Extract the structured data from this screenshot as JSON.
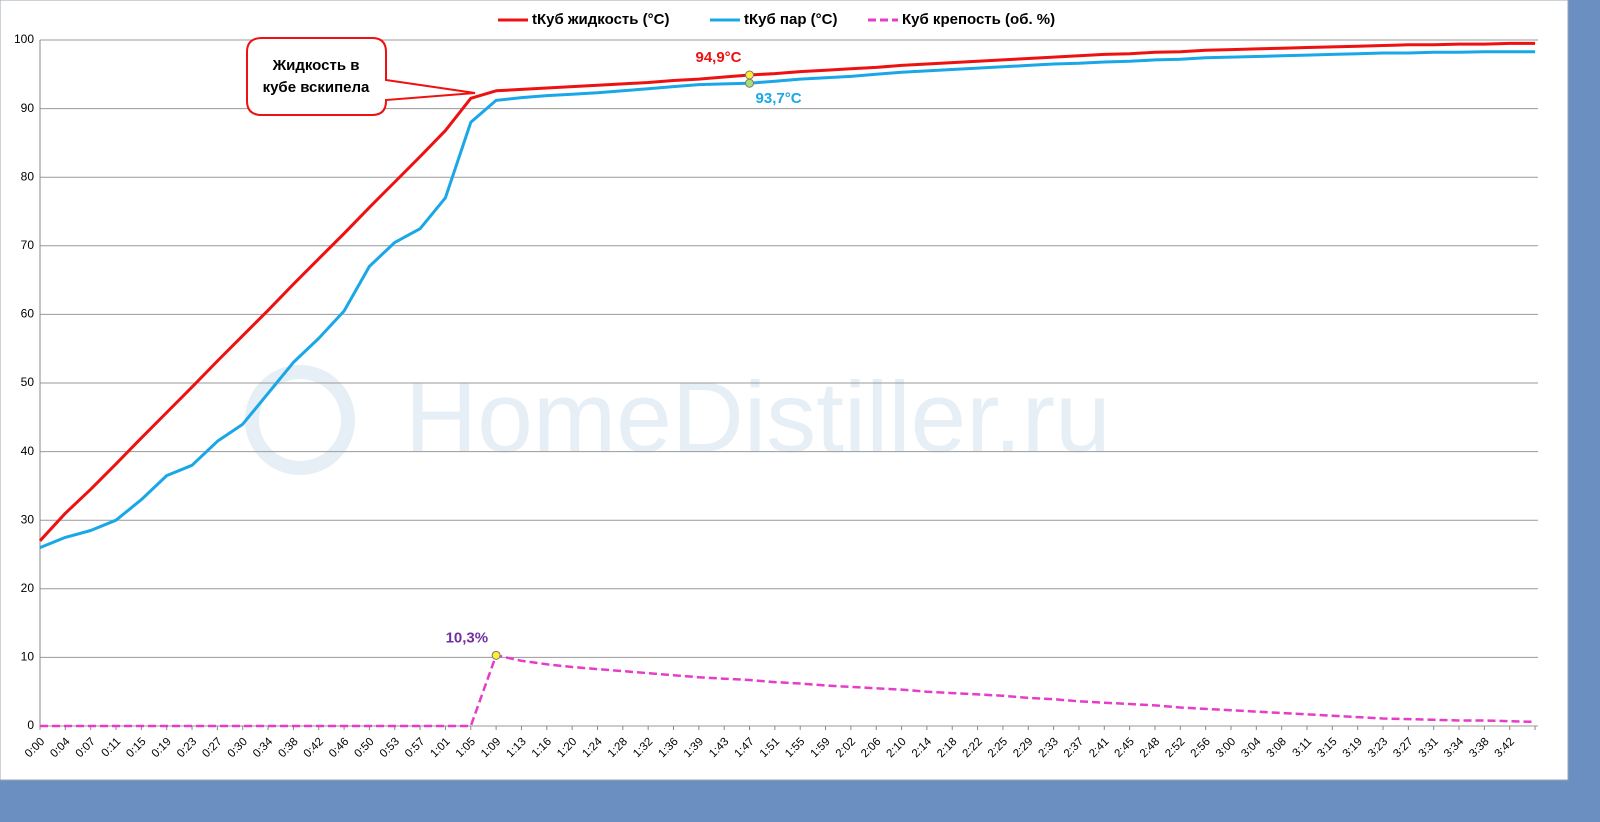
{
  "chart_data": {
    "type": "line",
    "categories": [
      "0:00",
      "0:04",
      "0:07",
      "0:11",
      "0:15",
      "0:19",
      "0:23",
      "0:27",
      "0:30",
      "0:34",
      "0:38",
      "0:42",
      "0:46",
      "0:50",
      "0:53",
      "0:57",
      "1:01",
      "1:05",
      "1:09",
      "1:13",
      "1:16",
      "1:20",
      "1:24",
      "1:28",
      "1:32",
      "1:36",
      "1:39",
      "1:43",
      "1:47",
      "1:51",
      "1:55",
      "1:59",
      "2:02",
      "2:06",
      "2:10",
      "2:14",
      "2:18",
      "2:22",
      "2:25",
      "2:29",
      "2:33",
      "2:37",
      "2:41",
      "2:45",
      "2:48",
      "2:52",
      "2:56",
      "3:00",
      "3:04",
      "3:08",
      "3:11",
      "3:15",
      "3:19",
      "3:23",
      "3:27",
      "3:31",
      "3:34",
      "3:38",
      "3:42",
      null
    ],
    "series": [
      {
        "name": "tКуб жидкость (°C)",
        "color": "#ee1111",
        "dashed": false,
        "values": [
          27,
          31,
          34.5,
          38.2,
          42,
          45.7,
          49.4,
          53.2,
          56.9,
          60.6,
          64.4,
          68.1,
          71.8,
          75.6,
          79.3,
          83,
          86.8,
          91.5,
          92.6,
          92.8,
          93.0,
          93.2,
          93.4,
          93.6,
          93.8,
          94.1,
          94.3,
          94.6,
          94.9,
          95.1,
          95.4,
          95.6,
          95.8,
          96.0,
          96.3,
          96.5,
          96.7,
          96.9,
          97.1,
          97.3,
          97.5,
          97.7,
          97.9,
          98.0,
          98.2,
          98.3,
          98.5,
          98.6,
          98.7,
          98.8,
          98.9,
          99.0,
          99.1,
          99.2,
          99.3,
          99.3,
          99.4,
          99.4,
          99.5,
          99.5
        ],
        "value_labels": [
          null,
          null,
          null,
          null,
          null,
          null,
          null,
          null,
          null,
          null,
          null,
          null,
          null,
          null,
          null,
          null,
          null,
          null,
          null,
          null,
          null,
          null,
          null,
          null,
          null,
          null,
          null,
          null,
          "94,9°C",
          null,
          null,
          null,
          null,
          null,
          null,
          null,
          null,
          null,
          null,
          null,
          null,
          null,
          null,
          null,
          null,
          null,
          null,
          null,
          null,
          null,
          null,
          null,
          null,
          null,
          null,
          null,
          null,
          null,
          null,
          null
        ]
      },
      {
        "name": "tКуб пар (°C)",
        "color": "#1aa7e8",
        "dashed": false,
        "values": [
          26,
          27.5,
          28.5,
          30,
          33,
          36.5,
          38,
          41.5,
          44,
          48.5,
          53,
          56.5,
          60.5,
          67,
          70.5,
          72.5,
          77,
          88,
          91.2,
          91.6,
          91.9,
          92.1,
          92.3,
          92.6,
          92.9,
          93.2,
          93.5,
          93.6,
          93.7,
          94.0,
          94.3,
          94.5,
          94.7,
          95.0,
          95.3,
          95.5,
          95.7,
          95.9,
          96.1,
          96.3,
          96.5,
          96.6,
          96.8,
          96.9,
          97.1,
          97.2,
          97.4,
          97.5,
          97.6,
          97.7,
          97.8,
          97.9,
          98.0,
          98.1,
          98.1,
          98.2,
          98.2,
          98.3,
          98.3,
          98.3
        ],
        "value_labels": [
          null,
          null,
          null,
          null,
          null,
          null,
          null,
          null,
          null,
          null,
          null,
          null,
          null,
          null,
          null,
          null,
          null,
          null,
          null,
          null,
          null,
          null,
          null,
          null,
          null,
          null,
          null,
          null,
          "93,7°C",
          null,
          null,
          null,
          null,
          null,
          null,
          null,
          null,
          null,
          null,
          null,
          null,
          null,
          null,
          null,
          null,
          null,
          null,
          null,
          null,
          null,
          null,
          null,
          null,
          null,
          null,
          null,
          null,
          null,
          null,
          null
        ]
      },
      {
        "name": "Куб крепость (об. %)",
        "color": "#e63cc8",
        "dashed": true,
        "values": [
          0,
          0,
          0,
          0,
          0,
          0,
          0,
          0,
          0,
          0,
          0,
          0,
          0,
          0,
          0,
          0,
          0,
          0,
          10.3,
          9.5,
          9.0,
          8.6,
          8.3,
          8.0,
          7.7,
          7.4,
          7.1,
          6.9,
          6.7,
          6.4,
          6.2,
          5.9,
          5.7,
          5.5,
          5.3,
          5.0,
          4.8,
          4.6,
          4.4,
          4.1,
          3.9,
          3.6,
          3.4,
          3.2,
          3.0,
          2.7,
          2.5,
          2.3,
          2.1,
          1.9,
          1.7,
          1.5,
          1.3,
          1.1,
          1.0,
          0.9,
          0.8,
          0.8,
          0.7,
          0.6
        ],
        "value_labels": [
          null,
          null,
          null,
          null,
          null,
          null,
          null,
          null,
          null,
          null,
          null,
          null,
          null,
          null,
          null,
          null,
          null,
          null,
          "10,3%",
          null,
          null,
          null,
          null,
          null,
          null,
          null,
          null,
          null,
          null,
          null,
          null,
          null,
          null,
          null,
          null,
          null,
          null,
          null,
          null,
          null,
          null,
          null,
          null,
          null,
          null,
          null,
          null,
          null,
          null,
          null,
          null,
          null,
          null,
          null,
          null,
          null,
          null,
          null,
          null,
          null
        ]
      }
    ],
    "ylim": [
      0,
      100
    ],
    "yticks": [
      0,
      10,
      20,
      30,
      40,
      50,
      60,
      70,
      80,
      90,
      100
    ],
    "grid": true,
    "annotation": {
      "lines": [
        "Жидкость в",
        "кубе вскипела"
      ]
    },
    "watermark": "HomeDistiller.ru"
  }
}
